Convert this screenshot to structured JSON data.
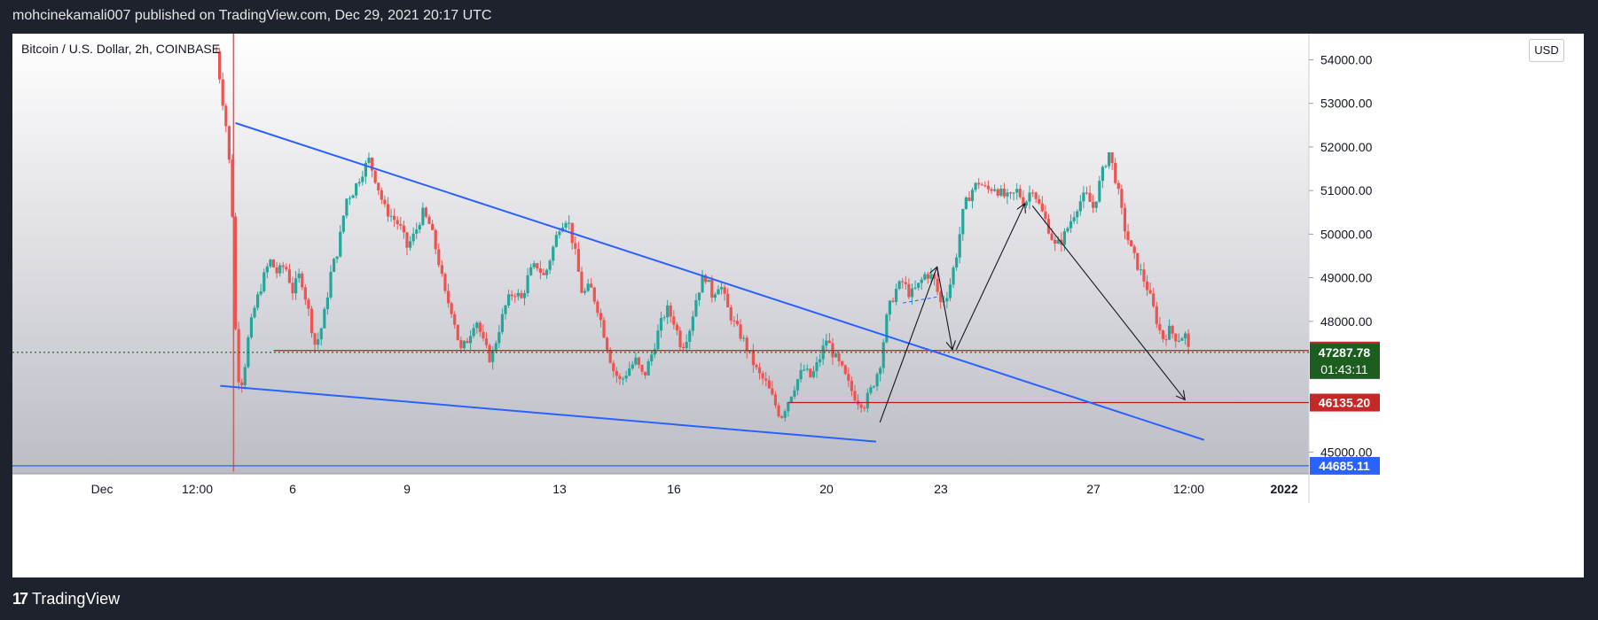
{
  "header": {
    "publisher_line": "mohcinekamali007 published on TradingView.com, Dec 29, 2021 20:17 UTC"
  },
  "symbol": {
    "label": "Bitcoin / U.S. Dollar, 2h, COINBASE"
  },
  "currency_badge": "USD",
  "footer": {
    "logo_mark": "17",
    "brand": "TradingView"
  },
  "colors": {
    "up": "#26a69a",
    "down": "#ef5350",
    "trendline": "#2962ff",
    "support_line": "#b71c1c",
    "current_price_bg": "#1b5e20",
    "last_price_bg": "#c62828",
    "bottom_line_bg": "#2962ff"
  },
  "chart_data": {
    "type": "candlestick",
    "title": "Bitcoin / U.S. Dollar, 2h, COINBASE",
    "ylim": [
      44500,
      54600
    ],
    "y_ticks": [
      {
        "value": 45000,
        "label": "45000.00"
      },
      {
        "value": 48000,
        "label": "48000.00"
      },
      {
        "value": 49000,
        "label": "49000.00"
      },
      {
        "value": 50000,
        "label": "50000.00"
      },
      {
        "value": 51000,
        "label": "51000.00"
      },
      {
        "value": 52000,
        "label": "52000.00"
      },
      {
        "value": 53000,
        "label": "53000.00"
      },
      {
        "value": 54000,
        "label": "54000.00"
      }
    ],
    "x_ticks": [
      {
        "label": "Dec",
        "t": 0.0
      },
      {
        "label": "12:00",
        "t": 2.5
      },
      {
        "label": "6",
        "t": 5.0
      },
      {
        "label": "9",
        "t": 8.0
      },
      {
        "label": "13",
        "t": 12.0
      },
      {
        "label": "16",
        "t": 15.0
      },
      {
        "label": "20",
        "t": 19.0
      },
      {
        "label": "23",
        "t": 22.0
      },
      {
        "label": "27",
        "t": 26.0
      },
      {
        "label": "12:00",
        "t": 28.5
      },
      {
        "label": "2022",
        "t": 31.0
      }
    ],
    "candles_close_path": [
      [
        3.0,
        54200
      ],
      [
        3.1,
        53500
      ],
      [
        3.25,
        52500
      ],
      [
        3.4,
        51000
      ],
      [
        3.5,
        47800
      ],
      [
        3.6,
        46500
      ],
      [
        3.7,
        46700
      ],
      [
        3.85,
        47700
      ],
      [
        4.0,
        48300
      ],
      [
        4.2,
        48900
      ],
      [
        4.4,
        49400
      ],
      [
        4.6,
        49100
      ],
      [
        4.8,
        49300
      ],
      [
        5.0,
        48700
      ],
      [
        5.2,
        49100
      ],
      [
        5.4,
        48300
      ],
      [
        5.6,
        47400
      ],
      [
        5.8,
        48000
      ],
      [
        6.0,
        49100
      ],
      [
        6.2,
        49700
      ],
      [
        6.4,
        50800
      ],
      [
        6.6,
        51000
      ],
      [
        6.8,
        51400
      ],
      [
        7.0,
        51700
      ],
      [
        7.2,
        51200
      ],
      [
        7.4,
        50600
      ],
      [
        7.6,
        50400
      ],
      [
        7.8,
        50200
      ],
      [
        8.0,
        49700
      ],
      [
        8.2,
        50000
      ],
      [
        8.4,
        50500
      ],
      [
        8.6,
        50200
      ],
      [
        8.8,
        49500
      ],
      [
        9.0,
        48600
      ],
      [
        9.2,
        48200
      ],
      [
        9.4,
        47300
      ],
      [
        9.6,
        47600
      ],
      [
        9.8,
        48100
      ],
      [
        10.0,
        47500
      ],
      [
        10.2,
        47100
      ],
      [
        10.4,
        47800
      ],
      [
        10.6,
        48400
      ],
      [
        10.8,
        48700
      ],
      [
        11.0,
        48500
      ],
      [
        11.2,
        49100
      ],
      [
        11.4,
        49300
      ],
      [
        11.6,
        49000
      ],
      [
        11.8,
        49600
      ],
      [
        12.0,
        50200
      ],
      [
        12.2,
        50400
      ],
      [
        12.4,
        49600
      ],
      [
        12.6,
        48600
      ],
      [
        12.8,
        48800
      ],
      [
        13.0,
        48300
      ],
      [
        13.2,
        47600
      ],
      [
        13.4,
        46900
      ],
      [
        13.6,
        46600
      ],
      [
        13.8,
        46900
      ],
      [
        14.0,
        47100
      ],
      [
        14.2,
        46700
      ],
      [
        14.4,
        47200
      ],
      [
        14.6,
        47800
      ],
      [
        14.8,
        48300
      ],
      [
        15.0,
        48000
      ],
      [
        15.2,
        47400
      ],
      [
        15.4,
        47800
      ],
      [
        15.6,
        48600
      ],
      [
        15.8,
        49100
      ],
      [
        16.0,
        48600
      ],
      [
        16.2,
        48900
      ],
      [
        16.4,
        48300
      ],
      [
        16.6,
        47900
      ],
      [
        16.8,
        47600
      ],
      [
        17.0,
        47200
      ],
      [
        17.2,
        46800
      ],
      [
        17.4,
        46600
      ],
      [
        17.6,
        46200
      ],
      [
        17.8,
        45800
      ],
      [
        18.0,
        46200
      ],
      [
        18.2,
        46600
      ],
      [
        18.4,
        46900
      ],
      [
        18.6,
        46700
      ],
      [
        18.8,
        47100
      ],
      [
        19.0,
        47600
      ],
      [
        19.2,
        47200
      ],
      [
        19.4,
        46900
      ],
      [
        19.6,
        46500
      ],
      [
        19.8,
        46200
      ],
      [
        20.0,
        46100
      ],
      [
        20.2,
        46500
      ],
      [
        20.4,
        47000
      ],
      [
        20.6,
        48200
      ],
      [
        20.8,
        48700
      ],
      [
        21.0,
        48900
      ],
      [
        21.2,
        48600
      ],
      [
        21.4,
        48800
      ],
      [
        21.6,
        49100
      ],
      [
        21.8,
        49000
      ],
      [
        22.0,
        48400
      ],
      [
        22.2,
        48700
      ],
      [
        22.4,
        49500
      ],
      [
        22.6,
        50600
      ],
      [
        22.8,
        51000
      ],
      [
        23.0,
        51200
      ],
      [
        23.2,
        51000
      ],
      [
        23.4,
        51100
      ],
      [
        23.6,
        50900
      ],
      [
        23.8,
        50800
      ],
      [
        24.0,
        51000
      ],
      [
        24.2,
        50700
      ],
      [
        24.4,
        51100
      ],
      [
        24.6,
        50600
      ],
      [
        24.8,
        50200
      ],
      [
        25.0,
        49700
      ],
      [
        25.2,
        49900
      ],
      [
        25.4,
        50300
      ],
      [
        25.6,
        50700
      ],
      [
        25.8,
        50900
      ],
      [
        26.0,
        50600
      ],
      [
        26.2,
        51300
      ],
      [
        26.4,
        51900
      ],
      [
        26.6,
        51200
      ],
      [
        26.8,
        50200
      ],
      [
        27.0,
        49600
      ],
      [
        27.2,
        49200
      ],
      [
        27.4,
        48800
      ],
      [
        27.6,
        48200
      ],
      [
        27.8,
        47600
      ],
      [
        28.0,
        47800
      ],
      [
        28.2,
        47600
      ],
      [
        28.4,
        47700
      ],
      [
        28.5,
        47290
      ]
    ],
    "horizontal_levels": [
      {
        "value": 47329.98,
        "label": "47329.98",
        "kind": "last_price"
      },
      {
        "value": 47287.78,
        "label": "47287.78",
        "kind": "current_price",
        "countdown": "01:43:11"
      },
      {
        "value": 46135.2,
        "label": "46135.20",
        "kind": "support"
      },
      {
        "value": 44685.11,
        "label": "44685.11",
        "kind": "bottom"
      }
    ],
    "trendlines": [
      {
        "name": "upper-trendline",
        "from": [
          3.5,
          52550
        ],
        "to": [
          28.9,
          45280
        ]
      },
      {
        "name": "lower-trendline",
        "from": [
          3.1,
          46520
        ],
        "to": [
          20.3,
          45240
        ]
      }
    ],
    "arrows": [
      {
        "from": [
          20.4,
          45680
        ],
        "to": [
          21.9,
          49250
        ]
      },
      {
        "from": [
          21.9,
          49250
        ],
        "to": [
          22.3,
          47350
        ]
      },
      {
        "from": [
          22.4,
          47350
        ],
        "to": [
          24.2,
          50700
        ]
      },
      {
        "from": [
          24.4,
          50650
        ],
        "to": [
          28.4,
          46200
        ]
      }
    ]
  }
}
